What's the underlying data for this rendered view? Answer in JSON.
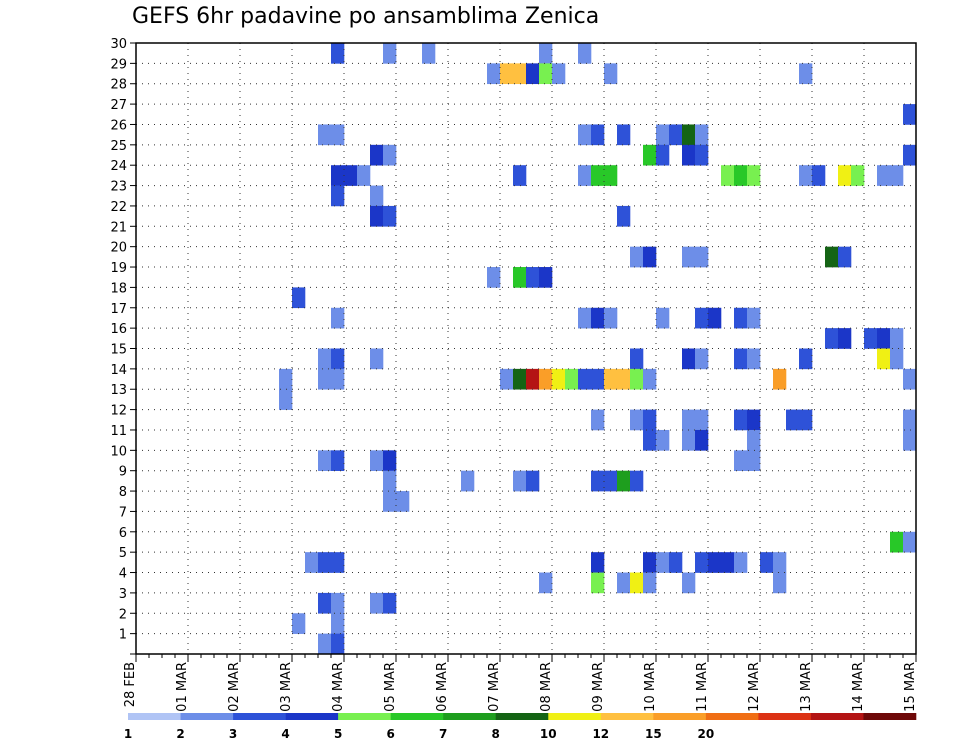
{
  "chart_data": {
    "type": "heatmap",
    "title": "GEFS 6hr padavine po ansamblima Zenica",
    "xlabel": "",
    "ylabel": "",
    "x_tick_labels": [
      "28 FEB",
      "01 MAR",
      "02 MAR",
      "03 MAR",
      "04 MAR",
      "05 MAR",
      "06 MAR",
      "07 MAR",
      "08 MAR",
      "09 MAR",
      "10 MAR",
      "11 MAR",
      "12 MAR",
      "13 MAR",
      "14 MAR",
      "15 MAR"
    ],
    "x_unit": "6-hour step (0 = 28 FEB 00Z)",
    "xlim": [
      0,
      60
    ],
    "y_tick_labels": [
      "1",
      "2",
      "3",
      "4",
      "5",
      "6",
      "7",
      "8",
      "9",
      "10",
      "11",
      "12",
      "13",
      "14",
      "15",
      "16",
      "17",
      "18",
      "19",
      "20",
      "21",
      "22",
      "23",
      "24",
      "25",
      "26",
      "27",
      "28",
      "29",
      "30"
    ],
    "ylim": [
      0,
      30
    ],
    "legend": {
      "colors": [
        "#b0c4f5",
        "#6d8ee8",
        "#2e52d8",
        "#1b36c8",
        "#78f050",
        "#28c828",
        "#1e9e1e",
        "#146414",
        "#f0f014",
        "#ffc040",
        "#fa9e28",
        "#f06e14",
        "#dc3214",
        "#b41414",
        "#6e0808"
      ],
      "labels": [
        "1",
        "2",
        "3",
        "4",
        "5",
        "6",
        "7",
        "8",
        "10",
        "12",
        "15",
        "20"
      ],
      "label_boundaries": [
        0,
        1,
        2,
        3,
        4,
        5,
        6,
        7,
        8,
        9,
        10,
        11
      ]
    },
    "value_scale": "legend color index 0-14",
    "cells": [
      [
        15,
        29,
        2
      ],
      [
        19,
        29,
        1
      ],
      [
        22,
        29,
        1
      ],
      [
        31,
        29,
        1
      ],
      [
        34,
        29,
        1
      ],
      [
        27,
        28,
        1
      ],
      [
        28,
        28,
        9
      ],
      [
        29,
        28,
        9
      ],
      [
        30,
        28,
        3
      ],
      [
        31,
        28,
        4
      ],
      [
        32,
        28,
        1
      ],
      [
        36,
        28,
        1
      ],
      [
        51,
        28,
        1
      ],
      [
        59,
        26,
        2
      ],
      [
        14,
        25,
        1
      ],
      [
        15,
        25,
        1
      ],
      [
        34,
        25,
        1
      ],
      [
        35,
        25,
        2
      ],
      [
        37,
        25,
        2
      ],
      [
        40,
        25,
        1
      ],
      [
        41,
        25,
        2
      ],
      [
        42,
        25,
        7
      ],
      [
        43,
        25,
        1
      ],
      [
        18,
        24,
        3
      ],
      [
        19,
        24,
        1
      ],
      [
        39,
        24,
        5
      ],
      [
        40,
        24,
        2
      ],
      [
        42,
        24,
        3
      ],
      [
        43,
        24,
        2
      ],
      [
        59,
        24,
        2
      ],
      [
        15,
        23,
        3
      ],
      [
        16,
        23,
        3
      ],
      [
        17,
        23,
        1
      ],
      [
        29,
        23,
        2
      ],
      [
        34,
        23,
        1
      ],
      [
        35,
        23,
        5
      ],
      [
        36,
        23,
        5
      ],
      [
        45,
        23,
        4
      ],
      [
        46,
        23,
        5
      ],
      [
        47,
        23,
        4
      ],
      [
        51,
        23,
        1
      ],
      [
        52,
        23,
        2
      ],
      [
        54,
        23,
        8
      ],
      [
        55,
        23,
        4
      ],
      [
        57,
        23,
        1
      ],
      [
        58,
        23,
        1
      ],
      [
        15,
        22,
        2
      ],
      [
        18,
        22,
        1
      ],
      [
        18,
        21,
        3
      ],
      [
        19,
        21,
        2
      ],
      [
        37,
        21,
        2
      ],
      [
        38,
        19,
        1
      ],
      [
        39,
        19,
        3
      ],
      [
        42,
        19,
        1
      ],
      [
        43,
        19,
        1
      ],
      [
        53,
        19,
        7
      ],
      [
        54,
        19,
        2
      ],
      [
        27,
        18,
        1
      ],
      [
        29,
        18,
        5
      ],
      [
        30,
        18,
        2
      ],
      [
        31,
        18,
        3
      ],
      [
        12,
        17,
        2
      ],
      [
        15,
        16,
        1
      ],
      [
        34,
        16,
        1
      ],
      [
        35,
        16,
        3
      ],
      [
        36,
        16,
        1
      ],
      [
        40,
        16,
        1
      ],
      [
        43,
        16,
        2
      ],
      [
        44,
        16,
        3
      ],
      [
        46,
        16,
        2
      ],
      [
        47,
        16,
        1
      ],
      [
        53,
        15,
        2
      ],
      [
        54,
        15,
        3
      ],
      [
        56,
        15,
        2
      ],
      [
        57,
        15,
        3
      ],
      [
        58,
        15,
        1
      ],
      [
        14,
        14,
        1
      ],
      [
        15,
        14,
        2
      ],
      [
        18,
        14,
        1
      ],
      [
        38,
        14,
        2
      ],
      [
        42,
        14,
        3
      ],
      [
        43,
        14,
        1
      ],
      [
        46,
        14,
        2
      ],
      [
        47,
        14,
        1
      ],
      [
        51,
        14,
        2
      ],
      [
        57,
        14,
        8
      ],
      [
        58,
        14,
        1
      ],
      [
        11,
        13,
        1
      ],
      [
        14,
        13,
        1
      ],
      [
        15,
        13,
        1
      ],
      [
        28,
        13,
        1
      ],
      [
        29,
        13,
        7
      ],
      [
        30,
        13,
        13
      ],
      [
        31,
        13,
        10
      ],
      [
        32,
        13,
        8
      ],
      [
        33,
        13,
        4
      ],
      [
        34,
        13,
        2
      ],
      [
        35,
        13,
        2
      ],
      [
        36,
        13,
        9
      ],
      [
        37,
        13,
        9
      ],
      [
        38,
        13,
        4
      ],
      [
        39,
        13,
        1
      ],
      [
        49,
        13,
        10
      ],
      [
        59,
        13,
        1
      ],
      [
        11,
        12,
        1
      ],
      [
        35,
        11,
        1
      ],
      [
        38,
        11,
        1
      ],
      [
        39,
        11,
        2
      ],
      [
        42,
        11,
        1
      ],
      [
        43,
        11,
        1
      ],
      [
        46,
        11,
        2
      ],
      [
        47,
        11,
        3
      ],
      [
        50,
        11,
        2
      ],
      [
        51,
        11,
        2
      ],
      [
        59,
        11,
        1
      ],
      [
        39,
        10,
        2
      ],
      [
        40,
        10,
        1
      ],
      [
        42,
        10,
        1
      ],
      [
        43,
        10,
        3
      ],
      [
        47,
        10,
        1
      ],
      [
        59,
        10,
        1
      ],
      [
        14,
        9,
        1
      ],
      [
        15,
        9,
        2
      ],
      [
        18,
        9,
        1
      ],
      [
        19,
        9,
        3
      ],
      [
        46,
        9,
        1
      ],
      [
        47,
        9,
        1
      ],
      [
        19,
        8,
        1
      ],
      [
        25,
        8,
        1
      ],
      [
        29,
        8,
        1
      ],
      [
        30,
        8,
        2
      ],
      [
        35,
        8,
        2
      ],
      [
        36,
        8,
        2
      ],
      [
        37,
        8,
        6
      ],
      [
        38,
        8,
        2
      ],
      [
        19,
        7,
        1
      ],
      [
        20,
        7,
        1
      ],
      [
        58,
        5,
        5
      ],
      [
        59,
        5,
        1
      ],
      [
        13,
        4,
        1
      ],
      [
        14,
        4,
        2
      ],
      [
        15,
        4,
        2
      ],
      [
        35,
        4,
        3
      ],
      [
        39,
        4,
        3
      ],
      [
        40,
        4,
        1
      ],
      [
        41,
        4,
        2
      ],
      [
        43,
        4,
        2
      ],
      [
        44,
        4,
        3
      ],
      [
        45,
        4,
        3
      ],
      [
        46,
        4,
        1
      ],
      [
        48,
        4,
        2
      ],
      [
        49,
        4,
        1
      ],
      [
        31,
        3,
        1
      ],
      [
        35,
        3,
        4
      ],
      [
        37,
        3,
        1
      ],
      [
        38,
        3,
        8
      ],
      [
        39,
        3,
        1
      ],
      [
        42,
        3,
        1
      ],
      [
        49,
        3,
        1
      ],
      [
        14,
        2,
        2
      ],
      [
        15,
        2,
        1
      ],
      [
        18,
        2,
        1
      ],
      [
        19,
        2,
        2
      ],
      [
        12,
        1,
        1
      ],
      [
        15,
        1,
        1
      ],
      [
        14,
        0,
        1
      ],
      [
        15,
        0,
        2
      ]
    ]
  }
}
